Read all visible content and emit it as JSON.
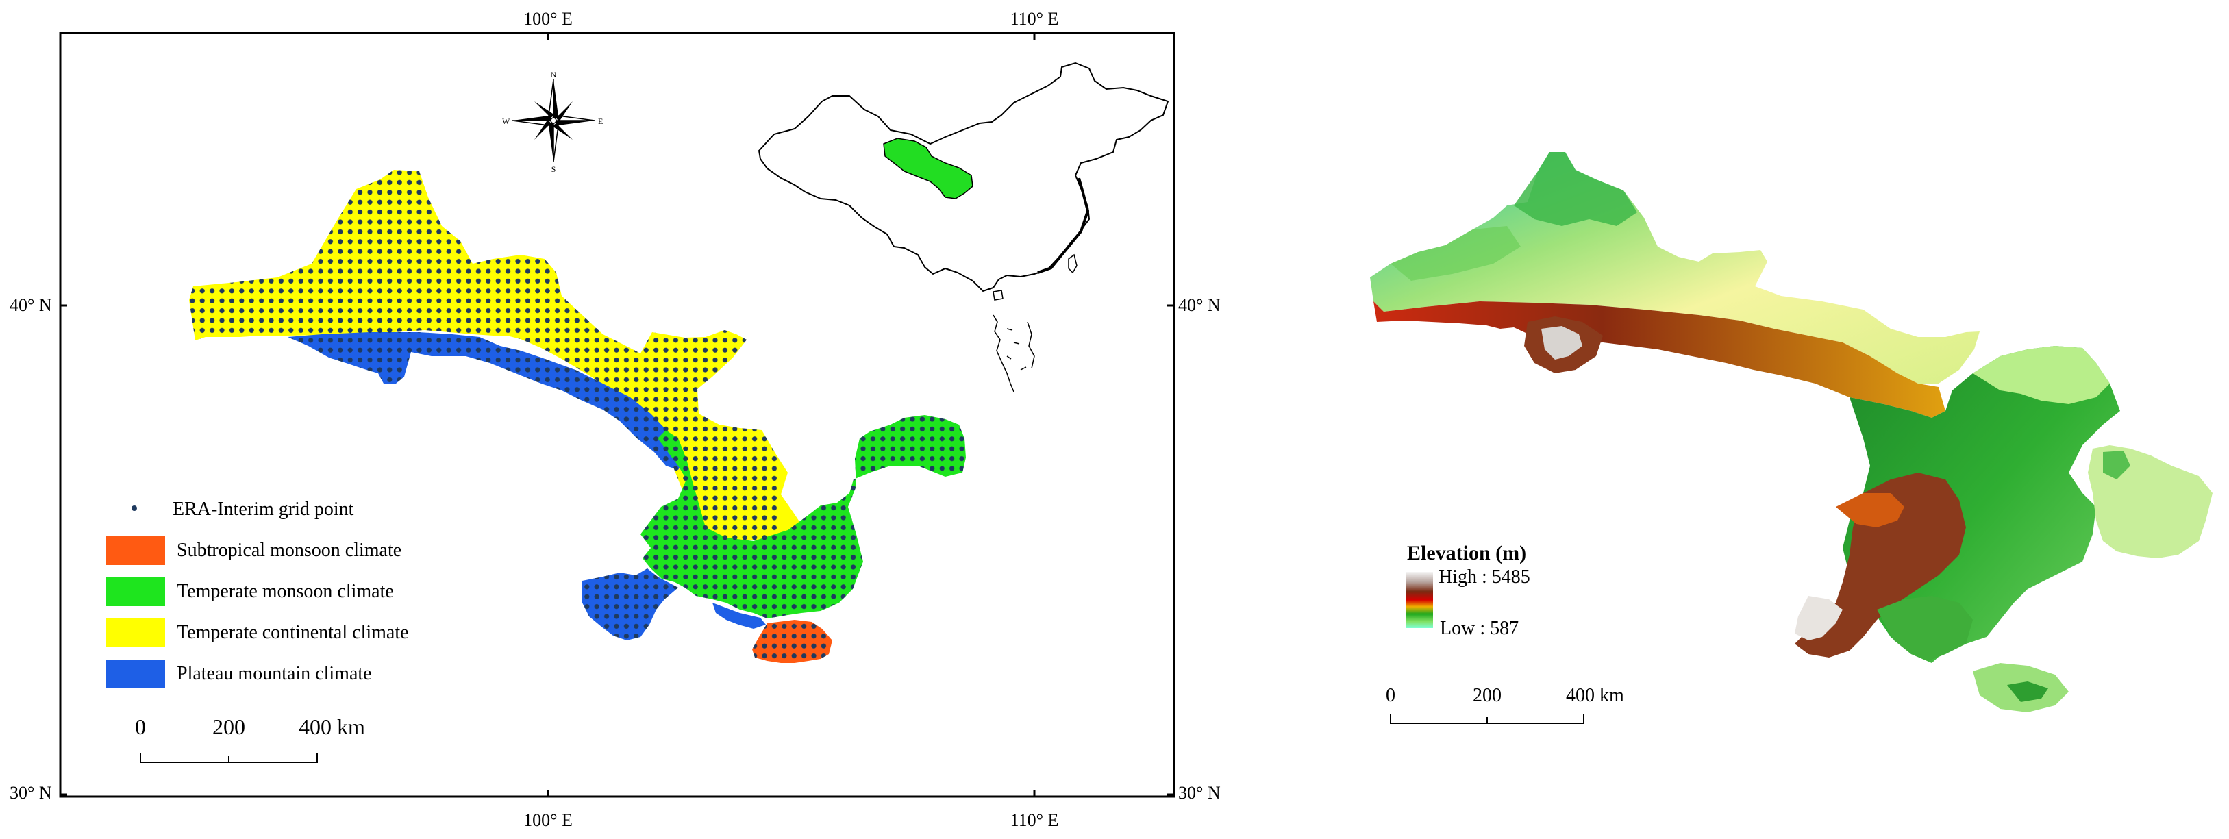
{
  "left_map": {
    "coords": {
      "top_100": "100° E",
      "top_110": "110° E",
      "bottom_100": "100° E",
      "bottom_110": "110° E",
      "left_40": "40° N",
      "left_30": "30° N",
      "right_40": "40° N",
      "right_30": "30° N"
    },
    "compass": {
      "n": "N",
      "s": "S",
      "e": "E",
      "w": "W"
    },
    "legend": {
      "grid_point": "ERA-Interim grid point",
      "items": [
        {
          "label": "Subtropical monsoon climate",
          "color": "#ff5a12"
        },
        {
          "label": "Temperate monsoon climate",
          "color": "#1ee51e"
        },
        {
          "label": "Temperate continental climate",
          "color": "#ffff00"
        },
        {
          "label": "Plateau mountain climate",
          "color": "#1e5fe6"
        }
      ]
    },
    "scale": {
      "t0": "0",
      "t200": "200",
      "t400": "400 km"
    }
  },
  "right_map": {
    "legend": {
      "title": "Elevation (m)",
      "high": "High : 5485",
      "low": "Low : 587"
    },
    "scale": {
      "t0": "0",
      "t200": "200",
      "t400": "400 km"
    }
  },
  "colors": {
    "grid_dot": "#1f3a5f",
    "inset_highlight": "#22dd22"
  }
}
